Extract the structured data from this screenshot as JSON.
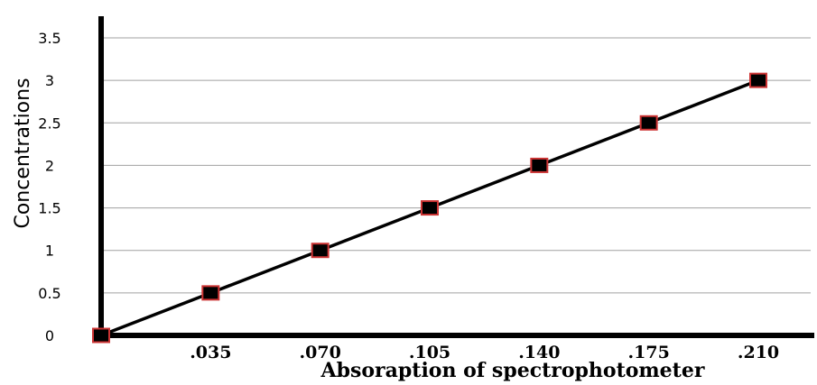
{
  "chart_data": {
    "type": "line",
    "title": "",
    "xlabel": "Absoraption of spectrophotometer",
    "ylabel": "Concentrations",
    "x_tick_labels": [
      ".035",
      ".070",
      ".105",
      ".140",
      ".175",
      ".210"
    ],
    "x_tick_values": [
      0.035,
      0.07,
      0.105,
      0.14,
      0.175,
      0.21
    ],
    "y_tick_labels": [
      "0",
      "0.5",
      "1",
      "1.5",
      "2",
      "2.5",
      "3",
      "3.5"
    ],
    "y_tick_values": [
      0,
      0.5,
      1,
      1.5,
      2,
      2.5,
      3,
      3.5
    ],
    "xlim": [
      0,
      0.245
    ],
    "ylim": [
      0,
      3.5
    ],
    "grid": "horizontal",
    "legend": "none",
    "series": [
      {
        "x": [
          0,
          0.035,
          0.07,
          0.105,
          0.14,
          0.175,
          0.21
        ],
        "y": [
          0,
          0.5,
          1,
          1.5,
          2,
          2.5,
          3
        ],
        "line_color": "#000000",
        "marker": "square",
        "marker_fill": "#000000",
        "marker_edge": "#cc3333"
      }
    ],
    "gridline_color": "#a0a0a0",
    "axis_color": "#000000"
  }
}
